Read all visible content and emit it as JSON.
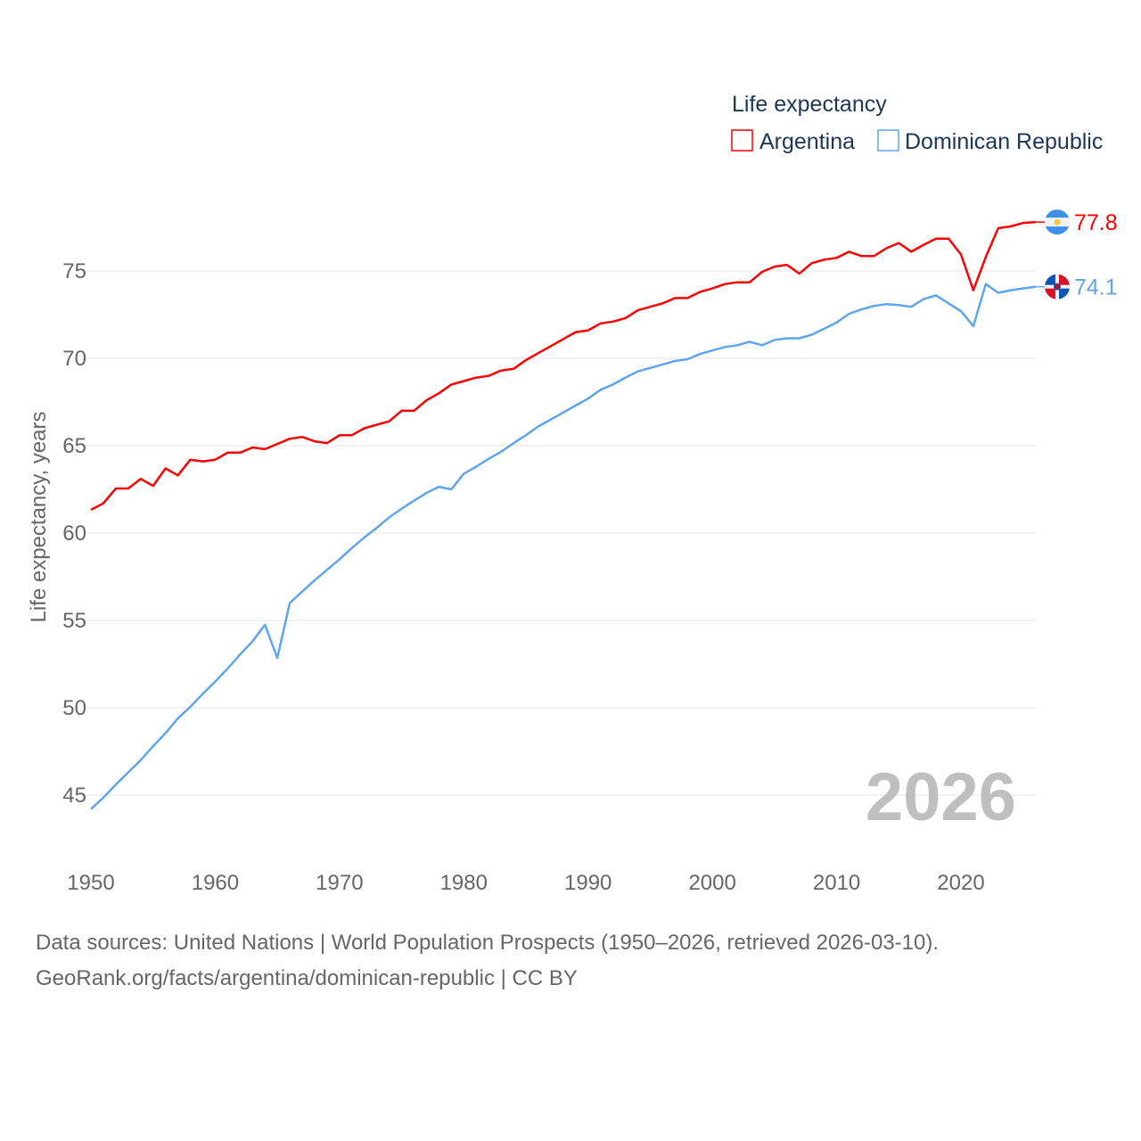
{
  "chart_data": {
    "type": "line",
    "legend_title": "Life expectancy",
    "ylabel": "Life expectancy, years",
    "xlabel": "",
    "xlim": [
      1950,
      2026
    ],
    "ylim": [
      43.3,
      80
    ],
    "grid": true,
    "legend_placement": "top-right",
    "x_ticks": [
      1950,
      1960,
      1970,
      1980,
      1990,
      2000,
      2010,
      2020
    ],
    "y_ticks": [
      45,
      50,
      55,
      60,
      65,
      70,
      75
    ],
    "year_overlay": "2026",
    "x": [
      1950,
      1951,
      1952,
      1953,
      1954,
      1955,
      1956,
      1957,
      1958,
      1959,
      1960,
      1961,
      1962,
      1963,
      1964,
      1965,
      1966,
      1967,
      1968,
      1969,
      1970,
      1971,
      1972,
      1973,
      1974,
      1975,
      1976,
      1977,
      1978,
      1979,
      1980,
      1981,
      1982,
      1983,
      1984,
      1985,
      1986,
      1987,
      1988,
      1989,
      1990,
      1991,
      1992,
      1993,
      1994,
      1995,
      1996,
      1997,
      1998,
      1999,
      2000,
      2001,
      2002,
      2003,
      2004,
      2005,
      2006,
      2007,
      2008,
      2009,
      2010,
      2011,
      2012,
      2013,
      2014,
      2015,
      2016,
      2017,
      2018,
      2019,
      2020,
      2021,
      2022,
      2023,
      2024,
      2025,
      2026
    ],
    "series": [
      {
        "name": "Argentina",
        "color": "#ff0000",
        "end_label": "77.8",
        "flag": "argentina-flag",
        "values": [
          61.33,
          61.7,
          62.55,
          62.55,
          63.1,
          62.7,
          63.7,
          63.3,
          64.2,
          64.1,
          64.2,
          64.6,
          64.6,
          64.9,
          64.8,
          65.1,
          65.4,
          65.5,
          65.25,
          65.15,
          65.6,
          65.6,
          66.0,
          66.2,
          66.4,
          67.0,
          67.0,
          67.6,
          68.0,
          68.5,
          68.7,
          68.9,
          69.0,
          69.3,
          69.4,
          69.9,
          70.3,
          70.7,
          71.1,
          71.5,
          71.6,
          72.0,
          72.1,
          72.3,
          72.75,
          72.95,
          73.15,
          73.45,
          73.45,
          73.8,
          74.0,
          74.25,
          74.35,
          74.35,
          74.95,
          75.25,
          75.35,
          74.85,
          75.45,
          75.65,
          75.75,
          76.1,
          75.85,
          75.85,
          76.3,
          76.6,
          76.1,
          76.5,
          76.85,
          76.85,
          75.95,
          73.9,
          75.8,
          77.45,
          77.55,
          77.75,
          77.8
        ]
      },
      {
        "name": "Dominican Republic",
        "color": "#5ea6ec",
        "end_label": "74.1",
        "flag": "dominican-republic-flag",
        "values": [
          44.2,
          44.85,
          45.6,
          46.3,
          47.0,
          47.8,
          48.55,
          49.4,
          50.05,
          50.8,
          51.5,
          52.25,
          53.05,
          53.8,
          54.75,
          52.85,
          56.0,
          56.65,
          57.3,
          57.9,
          58.5,
          59.15,
          59.75,
          60.3,
          60.9,
          61.4,
          61.85,
          62.3,
          62.65,
          62.5,
          63.4,
          63.8,
          64.25,
          64.65,
          65.15,
          65.6,
          66.1,
          66.5,
          66.9,
          67.3,
          67.7,
          68.2,
          68.5,
          68.9,
          69.25,
          69.45,
          69.65,
          69.85,
          69.95,
          70.25,
          70.45,
          70.65,
          70.75,
          70.95,
          70.75,
          71.05,
          71.15,
          71.15,
          71.35,
          71.7,
          72.05,
          72.55,
          72.8,
          73.0,
          73.1,
          73.05,
          72.95,
          73.4,
          73.6,
          73.15,
          72.7,
          71.85,
          74.25,
          73.75,
          73.9,
          74.0,
          74.1
        ]
      }
    ]
  },
  "footer": {
    "line1": "Data sources: United Nations | World Population Prospects (1950–2026, retrieved 2026-03-10).",
    "line2": "GeoRank.org/facts/argentina/dominican-republic | CC BY"
  }
}
